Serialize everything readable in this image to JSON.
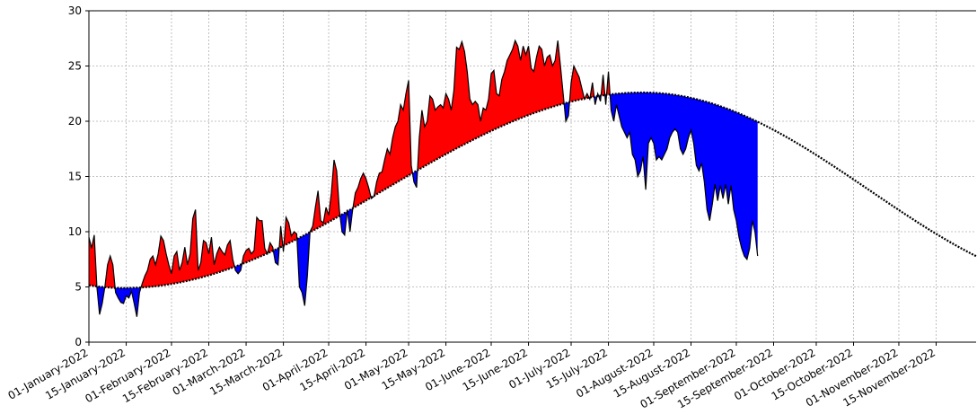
{
  "chart_data": {
    "type": "area",
    "title": "",
    "xlabel": "",
    "ylabel": "",
    "x_range": [
      "2022-01-01",
      "2022-11-30"
    ],
    "ylim": [
      0,
      30
    ],
    "yticks": [
      0,
      5,
      10,
      15,
      20,
      25,
      30
    ],
    "xticks": [
      {
        "date": "2022-01-01",
        "label": "01-January-2022"
      },
      {
        "date": "2022-01-15",
        "label": "15-January-2022"
      },
      {
        "date": "2022-02-01",
        "label": "01-February-2022"
      },
      {
        "date": "2022-02-15",
        "label": "15-February-2022"
      },
      {
        "date": "2022-03-01",
        "label": "01-March-2022"
      },
      {
        "date": "2022-03-15",
        "label": "15-March-2022"
      },
      {
        "date": "2022-04-01",
        "label": "01-April-2022"
      },
      {
        "date": "2022-04-15",
        "label": "15-April-2022"
      },
      {
        "date": "2022-05-01",
        "label": "01-May-2022"
      },
      {
        "date": "2022-05-15",
        "label": "15-May-2022"
      },
      {
        "date": "2022-06-01",
        "label": "01-June-2022"
      },
      {
        "date": "2022-06-15",
        "label": "15-June-2022"
      },
      {
        "date": "2022-07-01",
        "label": "01-July-2022"
      },
      {
        "date": "2022-07-15",
        "label": "15-July-2022"
      },
      {
        "date": "2022-08-01",
        "label": "01-August-2022"
      },
      {
        "date": "2022-08-15",
        "label": "15-August-2022"
      },
      {
        "date": "2022-09-01",
        "label": "01-September-2022"
      },
      {
        "date": "2022-09-15",
        "label": "15-September-2022"
      },
      {
        "date": "2022-10-01",
        "label": "01-October-2022"
      },
      {
        "date": "2022-10-15",
        "label": "15-October-2022"
      },
      {
        "date": "2022-11-01",
        "label": "01-November-2022"
      },
      {
        "date": "2022-11-15",
        "label": "15-November-2022"
      }
    ],
    "grid": true,
    "colors": {
      "above": "#ff0000",
      "below": "#0000ff",
      "line": "#000000"
    },
    "series": [
      {
        "role": "observed",
        "points": [
          [
            "2022-01-01",
            9.5
          ],
          [
            "2022-01-02",
            8.5
          ],
          [
            "2022-01-03",
            9.7
          ],
          [
            "2022-01-04",
            5.0
          ],
          [
            "2022-01-05",
            2.5
          ],
          [
            "2022-01-06",
            3.5
          ],
          [
            "2022-01-07",
            5.0
          ],
          [
            "2022-01-08",
            7.0
          ],
          [
            "2022-01-09",
            7.8
          ],
          [
            "2022-01-10",
            7.0
          ],
          [
            "2022-01-11",
            4.5
          ],
          [
            "2022-01-12",
            4.0
          ],
          [
            "2022-01-13",
            3.6
          ],
          [
            "2022-01-14",
            3.5
          ],
          [
            "2022-01-15",
            4.2
          ],
          [
            "2022-01-16",
            4.0
          ],
          [
            "2022-01-17",
            4.6
          ],
          [
            "2022-01-18",
            3.5
          ],
          [
            "2022-01-19",
            2.3
          ],
          [
            "2022-01-20",
            4.5
          ],
          [
            "2022-01-21",
            5.3
          ],
          [
            "2022-01-22",
            6.0
          ],
          [
            "2022-01-23",
            6.5
          ],
          [
            "2022-01-24",
            7.5
          ],
          [
            "2022-01-25",
            7.8
          ],
          [
            "2022-01-26",
            7.0
          ],
          [
            "2022-01-27",
            8.0
          ],
          [
            "2022-01-28",
            9.6
          ],
          [
            "2022-01-29",
            9.2
          ],
          [
            "2022-01-30",
            8.0
          ],
          [
            "2022-01-31",
            7.0
          ],
          [
            "2022-02-01",
            6.2
          ],
          [
            "2022-02-02",
            7.8
          ],
          [
            "2022-02-03",
            8.2
          ],
          [
            "2022-02-04",
            6.5
          ],
          [
            "2022-02-05",
            7.2
          ],
          [
            "2022-02-06",
            8.6
          ],
          [
            "2022-02-07",
            7.0
          ],
          [
            "2022-02-08",
            8.0
          ],
          [
            "2022-02-09",
            11.2
          ],
          [
            "2022-02-10",
            12.0
          ],
          [
            "2022-02-11",
            6.5
          ],
          [
            "2022-02-12",
            7.2
          ],
          [
            "2022-02-13",
            9.2
          ],
          [
            "2022-02-14",
            9.0
          ],
          [
            "2022-02-15",
            8.0
          ],
          [
            "2022-02-16",
            9.5
          ],
          [
            "2022-02-17",
            7.0
          ],
          [
            "2022-02-18",
            8.0
          ],
          [
            "2022-02-19",
            8.6
          ],
          [
            "2022-02-20",
            8.2
          ],
          [
            "2022-02-21",
            7.9
          ],
          [
            "2022-02-22",
            8.8
          ],
          [
            "2022-02-23",
            9.2
          ],
          [
            "2022-02-24",
            7.5
          ],
          [
            "2022-02-25",
            6.5
          ],
          [
            "2022-02-26",
            6.2
          ],
          [
            "2022-02-27",
            6.5
          ],
          [
            "2022-02-28",
            7.8
          ],
          [
            "2022-03-01",
            8.3
          ],
          [
            "2022-03-02",
            8.5
          ],
          [
            "2022-03-03",
            8.0
          ],
          [
            "2022-03-04",
            8.3
          ],
          [
            "2022-03-05",
            11.3
          ],
          [
            "2022-03-06",
            11.0
          ],
          [
            "2022-03-07",
            11.0
          ],
          [
            "2022-03-08",
            8.5
          ],
          [
            "2022-03-09",
            8.0
          ],
          [
            "2022-03-10",
            9.0
          ],
          [
            "2022-03-11",
            8.6
          ],
          [
            "2022-03-12",
            7.2
          ],
          [
            "2022-03-13",
            7.0
          ],
          [
            "2022-03-14",
            10.5
          ],
          [
            "2022-03-15",
            8.2
          ],
          [
            "2022-03-16",
            11.3
          ],
          [
            "2022-03-17",
            10.8
          ],
          [
            "2022-03-18",
            9.6
          ],
          [
            "2022-03-19",
            10.0
          ],
          [
            "2022-03-20",
            9.8
          ],
          [
            "2022-03-21",
            5.0
          ],
          [
            "2022-03-22",
            4.5
          ],
          [
            "2022-03-23",
            3.3
          ],
          [
            "2022-03-24",
            6.0
          ],
          [
            "2022-03-25",
            10.0
          ],
          [
            "2022-03-26",
            10.5
          ],
          [
            "2022-03-27",
            12.2
          ],
          [
            "2022-03-28",
            13.7
          ],
          [
            "2022-03-29",
            11.0
          ],
          [
            "2022-03-30",
            10.8
          ],
          [
            "2022-03-31",
            12.2
          ],
          [
            "2022-04-01",
            11.5
          ],
          [
            "2022-04-02",
            13.5
          ],
          [
            "2022-04-03",
            16.5
          ],
          [
            "2022-04-04",
            15.5
          ],
          [
            "2022-04-05",
            12.0
          ],
          [
            "2022-04-06",
            10.0
          ],
          [
            "2022-04-07",
            9.7
          ],
          [
            "2022-04-08",
            12.0
          ],
          [
            "2022-04-09",
            10.0
          ],
          [
            "2022-04-10",
            12.0
          ],
          [
            "2022-04-11",
            13.5
          ],
          [
            "2022-04-12",
            14.0
          ],
          [
            "2022-04-13",
            14.8
          ],
          [
            "2022-04-14",
            15.3
          ],
          [
            "2022-04-15",
            14.8
          ],
          [
            "2022-04-16",
            14.0
          ],
          [
            "2022-04-17",
            13.0
          ],
          [
            "2022-04-18",
            13.2
          ],
          [
            "2022-04-19",
            14.5
          ],
          [
            "2022-04-20",
            15.3
          ],
          [
            "2022-04-21",
            15.4
          ],
          [
            "2022-04-22",
            16.5
          ],
          [
            "2022-04-23",
            17.5
          ],
          [
            "2022-04-24",
            17.0
          ],
          [
            "2022-04-25",
            18.5
          ],
          [
            "2022-04-26",
            19.5
          ],
          [
            "2022-04-27",
            20.0
          ],
          [
            "2022-04-28",
            21.5
          ],
          [
            "2022-04-29",
            21.0
          ],
          [
            "2022-04-30",
            22.5
          ],
          [
            "2022-05-01",
            23.7
          ],
          [
            "2022-05-02",
            16.0
          ],
          [
            "2022-05-03",
            14.5
          ],
          [
            "2022-05-04",
            14.0
          ],
          [
            "2022-05-05",
            18.5
          ],
          [
            "2022-05-06",
            21.0
          ],
          [
            "2022-05-07",
            19.5
          ],
          [
            "2022-05-08",
            20.0
          ],
          [
            "2022-05-09",
            22.3
          ],
          [
            "2022-05-10",
            22.0
          ],
          [
            "2022-05-11",
            21.0
          ],
          [
            "2022-05-12",
            21.3
          ],
          [
            "2022-05-13",
            21.5
          ],
          [
            "2022-05-14",
            21.2
          ],
          [
            "2022-05-15",
            22.5
          ],
          [
            "2022-05-16",
            22.0
          ],
          [
            "2022-05-17",
            21.0
          ],
          [
            "2022-05-18",
            22.8
          ],
          [
            "2022-05-19",
            26.7
          ],
          [
            "2022-05-20",
            26.5
          ],
          [
            "2022-05-21",
            27.2
          ],
          [
            "2022-05-22",
            26.3
          ],
          [
            "2022-05-23",
            24.5
          ],
          [
            "2022-05-24",
            22.0
          ],
          [
            "2022-05-25",
            21.5
          ],
          [
            "2022-05-26",
            21.8
          ],
          [
            "2022-05-27",
            21.5
          ],
          [
            "2022-05-28",
            20.0
          ],
          [
            "2022-05-29",
            21.2
          ],
          [
            "2022-05-30",
            21.0
          ],
          [
            "2022-05-31",
            22.0
          ],
          [
            "2022-06-01",
            24.3
          ],
          [
            "2022-06-02",
            24.6
          ],
          [
            "2022-06-03",
            22.5
          ],
          [
            "2022-06-04",
            22.3
          ],
          [
            "2022-06-05",
            23.8
          ],
          [
            "2022-06-06",
            24.5
          ],
          [
            "2022-06-07",
            25.5
          ],
          [
            "2022-06-08",
            26.0
          ],
          [
            "2022-06-09",
            26.5
          ],
          [
            "2022-06-10",
            27.3
          ],
          [
            "2022-06-11",
            26.8
          ],
          [
            "2022-06-12",
            25.5
          ],
          [
            "2022-06-13",
            26.8
          ],
          [
            "2022-06-14",
            26.0
          ],
          [
            "2022-06-15",
            26.8
          ],
          [
            "2022-06-16",
            24.8
          ],
          [
            "2022-06-17",
            24.5
          ],
          [
            "2022-06-18",
            25.8
          ],
          [
            "2022-06-19",
            26.8
          ],
          [
            "2022-06-20",
            26.5
          ],
          [
            "2022-06-21",
            25.0
          ],
          [
            "2022-06-22",
            25.8
          ],
          [
            "2022-06-23",
            26.0
          ],
          [
            "2022-06-24",
            25.0
          ],
          [
            "2022-06-25",
            25.5
          ],
          [
            "2022-06-26",
            27.3
          ],
          [
            "2022-06-27",
            25.0
          ],
          [
            "2022-06-28",
            22.5
          ],
          [
            "2022-06-29",
            20.0
          ],
          [
            "2022-06-30",
            20.5
          ],
          [
            "2022-07-01",
            23.5
          ],
          [
            "2022-07-02",
            25.0
          ],
          [
            "2022-07-03",
            24.5
          ],
          [
            "2022-07-04",
            24.0
          ],
          [
            "2022-07-05",
            23.0
          ],
          [
            "2022-07-06",
            22.0
          ],
          [
            "2022-07-07",
            22.5
          ],
          [
            "2022-07-08",
            22.0
          ],
          [
            "2022-07-09",
            23.5
          ],
          [
            "2022-07-10",
            21.5
          ],
          [
            "2022-07-11",
            22.5
          ],
          [
            "2022-07-12",
            21.8
          ],
          [
            "2022-07-13",
            24.2
          ],
          [
            "2022-07-14",
            21.5
          ],
          [
            "2022-07-15",
            24.5
          ],
          [
            "2022-07-16",
            21.0
          ],
          [
            "2022-07-17",
            20.0
          ],
          [
            "2022-07-18",
            21.5
          ],
          [
            "2022-07-19",
            20.5
          ],
          [
            "2022-07-20",
            19.5
          ],
          [
            "2022-07-21",
            19.0
          ],
          [
            "2022-07-22",
            18.5
          ],
          [
            "2022-07-23",
            19.0
          ],
          [
            "2022-07-24",
            17.0
          ],
          [
            "2022-07-25",
            16.5
          ],
          [
            "2022-07-26",
            15.0
          ],
          [
            "2022-07-27",
            15.5
          ],
          [
            "2022-07-28",
            16.8
          ],
          [
            "2022-07-29",
            13.8
          ],
          [
            "2022-07-30",
            18.0
          ],
          [
            "2022-07-31",
            18.5
          ],
          [
            "2022-08-01",
            18.0
          ],
          [
            "2022-08-02",
            16.5
          ],
          [
            "2022-08-03",
            16.8
          ],
          [
            "2022-08-04",
            16.5
          ],
          [
            "2022-08-05",
            17.0
          ],
          [
            "2022-08-06",
            17.5
          ],
          [
            "2022-08-07",
            18.5
          ],
          [
            "2022-08-08",
            19.0
          ],
          [
            "2022-08-09",
            19.3
          ],
          [
            "2022-08-10",
            19.0
          ],
          [
            "2022-08-11",
            17.5
          ],
          [
            "2022-08-12",
            17.0
          ],
          [
            "2022-08-13",
            17.5
          ],
          [
            "2022-08-14",
            18.5
          ],
          [
            "2022-08-15",
            19.2
          ],
          [
            "2022-08-16",
            18.0
          ],
          [
            "2022-08-17",
            16.0
          ],
          [
            "2022-08-18",
            15.5
          ],
          [
            "2022-08-19",
            16.2
          ],
          [
            "2022-08-20",
            14.5
          ],
          [
            "2022-08-21",
            12.0
          ],
          [
            "2022-08-22",
            11.0
          ],
          [
            "2022-08-23",
            12.5
          ],
          [
            "2022-08-24",
            14.3
          ],
          [
            "2022-08-25",
            12.8
          ],
          [
            "2022-08-26",
            14.2
          ],
          [
            "2022-08-27",
            13.0
          ],
          [
            "2022-08-28",
            14.3
          ],
          [
            "2022-08-29",
            12.5
          ],
          [
            "2022-08-30",
            14.2
          ],
          [
            "2022-08-31",
            12.0
          ],
          [
            "2022-09-01",
            11.0
          ],
          [
            "2022-09-02",
            9.5
          ],
          [
            "2022-09-03",
            8.5
          ],
          [
            "2022-09-04",
            7.8
          ],
          [
            "2022-09-05",
            7.5
          ],
          [
            "2022-09-06",
            8.5
          ],
          [
            "2022-09-07",
            11.0
          ],
          [
            "2022-09-08",
            10.0
          ],
          [
            "2022-09-09",
            7.8
          ]
        ]
      },
      {
        "role": "climatology",
        "curve": {
          "min": 4.9,
          "min_date": "2022-01-14",
          "max": 22.6,
          "max_date": "2022-07-28"
        }
      }
    ]
  }
}
